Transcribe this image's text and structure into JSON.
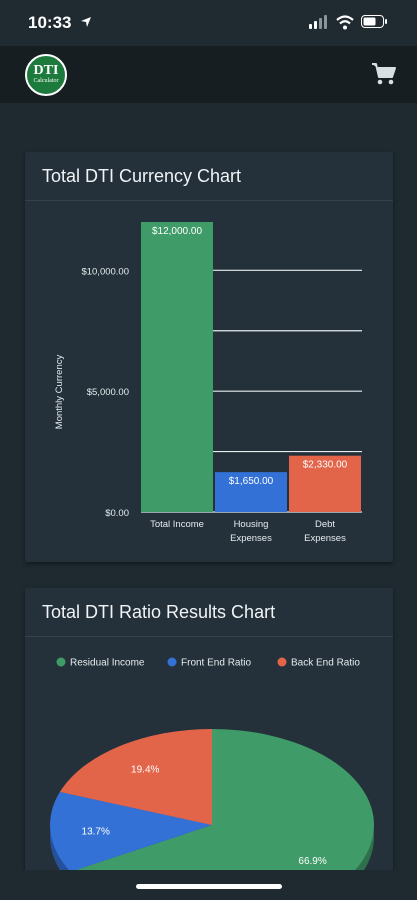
{
  "status": {
    "time": "10:33"
  },
  "app": {
    "logo_main": "DTI",
    "logo_sub": "Calculator"
  },
  "icons": {
    "location": "location-arrow-icon",
    "signal": "signal-bars-icon",
    "wifi": "wifi-icon",
    "battery": "battery-icon",
    "cart": "shopping-cart-icon"
  },
  "colors": {
    "green": "#3f9c68",
    "blue": "#3371d6",
    "orange": "#e2654a"
  },
  "currency_chart": {
    "title": "Total DTI Currency Chart",
    "ylabel": "Monthly Currency",
    "y_ticks": [
      "$10,000.00",
      "$5,000.00",
      "$0.00"
    ],
    "categories": [
      {
        "line1": "Total Income",
        "line2": ""
      },
      {
        "line1": "Housing",
        "line2": "Expenses"
      },
      {
        "line1": "Debt",
        "line2": "Expenses"
      }
    ],
    "value_labels": [
      "$12,000.00",
      "$1,650.00",
      "$2,330.00"
    ]
  },
  "ratio_chart": {
    "title": "Total DTI Ratio Results Chart",
    "legend": [
      "Residual Income",
      "Front End Ratio",
      "Back End Ratio"
    ],
    "slice_labels": [
      "66.9%",
      "13.7%",
      "19.4%"
    ]
  },
  "chart_data": [
    {
      "type": "bar",
      "title": "Total DTI Currency Chart",
      "xlabel": "",
      "ylabel": "Monthly Currency",
      "categories": [
        "Total Income",
        "Housing Expenses",
        "Debt Expenses"
      ],
      "values": [
        12000,
        1650,
        2330
      ],
      "ylim": [
        0,
        12000
      ],
      "y_ticks": [
        0,
        5000,
        10000
      ],
      "grid": true,
      "colors": [
        "#3f9c68",
        "#3371d6",
        "#e2654a"
      ]
    },
    {
      "type": "pie",
      "title": "Total DTI Ratio Results Chart",
      "categories": [
        "Residual Income",
        "Front End Ratio",
        "Back End Ratio"
      ],
      "values": [
        66.9,
        13.7,
        19.4
      ],
      "legend": "top",
      "colors": [
        "#3f9c68",
        "#3371d6",
        "#e2654a"
      ]
    }
  ]
}
